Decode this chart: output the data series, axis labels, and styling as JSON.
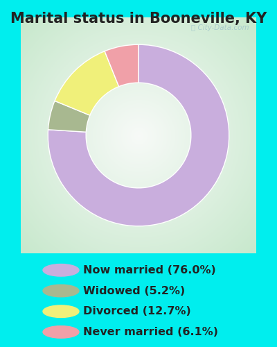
{
  "title": "Marital status in Booneville, KY",
  "slices": [
    76.0,
    5.2,
    12.7,
    6.1
  ],
  "labels": [
    "Now married (76.0%)",
    "Widowed (5.2%)",
    "Divorced (12.7%)",
    "Never married (6.1%)"
  ],
  "colors": [
    "#c9aedd",
    "#a8b890",
    "#f0f07a",
    "#f0a0a8"
  ],
  "background_outer": "#00eeee",
  "background_chart_edge": "#c8e8cc",
  "background_chart_center": "#f0faf0",
  "donut_width": 0.42,
  "start_angle": 90,
  "watermark": "City-Data.com",
  "title_fontsize": 15,
  "legend_fontsize": 11.5,
  "title_color": "#222222"
}
